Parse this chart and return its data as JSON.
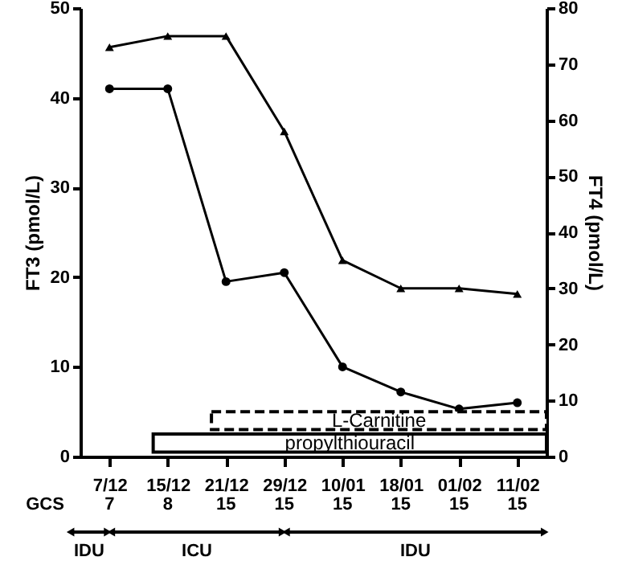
{
  "chart_data": {
    "type": "line",
    "categories": [
      "7/12",
      "15/12",
      "21/12",
      "29/12",
      "10/01",
      "18/01",
      "01/02",
      "11/02"
    ],
    "series": [
      {
        "name": null,
        "color": "#000000",
        "marker": "circle",
        "values": [
          41,
          41,
          19.5,
          20.5,
          10,
          7.2,
          5.3,
          6
        ]
      },
      {
        "name": null,
        "color": "#000000",
        "marker": "triangle",
        "axis": "y2",
        "values": [
          73,
          75,
          75,
          58,
          35,
          30,
          30,
          29
        ]
      }
    ],
    "ylabel": "FT3 (pmol/L)",
    "y2label": "FT4 (pmol/L)",
    "ylim": [
      0,
      50
    ],
    "yticks": [
      0,
      10,
      20,
      30,
      40,
      50
    ],
    "y2lim": [
      0,
      80
    ],
    "y2ticks": [
      0,
      10,
      20,
      30,
      40,
      50,
      60,
      70,
      80
    ],
    "bands": [
      {
        "axis": "x",
        "from": "21/12",
        "to": "11/02",
        "label": "L-Carnitine"
      },
      {
        "axis": "x",
        "from": "15/12",
        "to": "11/02",
        "label": "propylthiouracil"
      }
    ],
    "annotations": [
      "GCS",
      "7",
      "8",
      "15",
      "15",
      "15",
      "15",
      "15",
      "15",
      "IDU",
      "ICU",
      "IDU"
    ],
    "grid": false
  }
}
